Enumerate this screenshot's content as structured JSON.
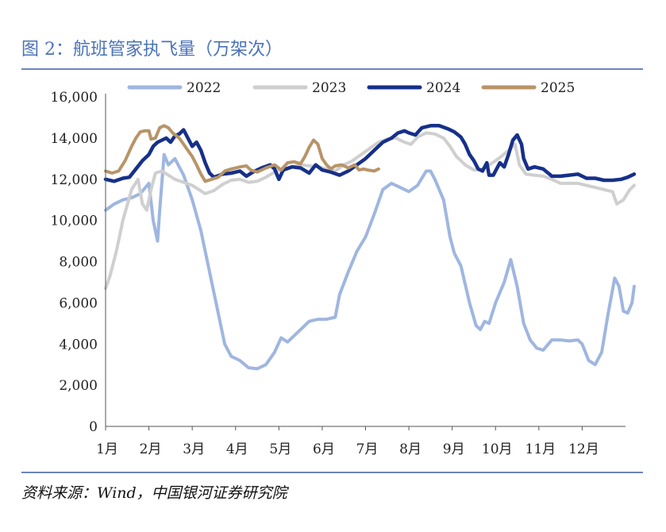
{
  "figure": {
    "title": "图 2：航班管家执飞量（万架次）",
    "source": "资料来源：Wind，中国银河证券研究院"
  },
  "chart_data": {
    "type": "line",
    "title": "图 2：航班管家执飞量（万架次）",
    "xlabel": "",
    "ylabel": "",
    "ylim": [
      0,
      16000
    ],
    "yticks": [
      "0",
      "2,000",
      "4,000",
      "6,000",
      "8,000",
      "10,000",
      "12,000",
      "14,000",
      "16,000"
    ],
    "xticks": [
      "1月",
      "2月",
      "3月",
      "4月",
      "5月",
      "6月",
      "7月",
      "8月",
      "9月",
      "10月",
      "11月",
      "12月"
    ],
    "xlim": [
      0,
      12
    ],
    "grid": false,
    "legend_position": "top",
    "series": [
      {
        "name": "2022",
        "color": "#9fb6e0",
        "points": [
          [
            0.0,
            10500
          ],
          [
            0.2,
            10800
          ],
          [
            0.4,
            11000
          ],
          [
            0.6,
            11100
          ],
          [
            0.8,
            11300
          ],
          [
            1.0,
            11800
          ],
          [
            1.1,
            10000
          ],
          [
            1.2,
            9000
          ],
          [
            1.25,
            10500
          ],
          [
            1.35,
            13200
          ],
          [
            1.45,
            12700
          ],
          [
            1.6,
            13000
          ],
          [
            1.8,
            12200
          ],
          [
            2.0,
            11000
          ],
          [
            2.2,
            9500
          ],
          [
            2.4,
            7500
          ],
          [
            2.6,
            5500
          ],
          [
            2.75,
            4000
          ],
          [
            2.9,
            3400
          ],
          [
            3.1,
            3200
          ],
          [
            3.3,
            2850
          ],
          [
            3.5,
            2800
          ],
          [
            3.7,
            3000
          ],
          [
            3.9,
            3600
          ],
          [
            4.05,
            4300
          ],
          [
            4.2,
            4100
          ],
          [
            4.35,
            4400
          ],
          [
            4.5,
            4700
          ],
          [
            4.7,
            5100
          ],
          [
            4.9,
            5200
          ],
          [
            5.1,
            5200
          ],
          [
            5.3,
            5300
          ],
          [
            5.4,
            6400
          ],
          [
            5.6,
            7500
          ],
          [
            5.8,
            8500
          ],
          [
            6.0,
            9200
          ],
          [
            6.2,
            10300
          ],
          [
            6.4,
            11500
          ],
          [
            6.6,
            11800
          ],
          [
            6.8,
            11600
          ],
          [
            7.0,
            11400
          ],
          [
            7.2,
            11700
          ],
          [
            7.4,
            12400
          ],
          [
            7.5,
            12400
          ],
          [
            7.6,
            12000
          ],
          [
            7.8,
            11000
          ],
          [
            7.95,
            9200
          ],
          [
            8.05,
            8400
          ],
          [
            8.2,
            7800
          ],
          [
            8.4,
            6000
          ],
          [
            8.55,
            4900
          ],
          [
            8.65,
            4700
          ],
          [
            8.75,
            5100
          ],
          [
            8.85,
            5000
          ],
          [
            9.0,
            6000
          ],
          [
            9.2,
            7000
          ],
          [
            9.35,
            8100
          ],
          [
            9.5,
            6800
          ],
          [
            9.65,
            5000
          ],
          [
            9.8,
            4200
          ],
          [
            9.95,
            3800
          ],
          [
            10.1,
            3700
          ],
          [
            10.3,
            4200
          ],
          [
            10.5,
            4200
          ],
          [
            10.7,
            4150
          ],
          [
            10.9,
            4200
          ],
          [
            11.0,
            4000
          ],
          [
            11.15,
            3200
          ],
          [
            11.3,
            3000
          ],
          [
            11.45,
            3600
          ],
          [
            11.6,
            5500
          ],
          [
            11.75,
            7200
          ],
          [
            11.85,
            6800
          ],
          [
            11.95,
            5600
          ],
          [
            12.05,
            5500
          ],
          [
            12.15,
            6000
          ],
          [
            12.2,
            6800
          ]
        ]
      },
      {
        "name": "2023",
        "color": "#cfcfcf",
        "points": [
          [
            0.0,
            6700
          ],
          [
            0.1,
            7300
          ],
          [
            0.25,
            8500
          ],
          [
            0.4,
            10000
          ],
          [
            0.6,
            11500
          ],
          [
            0.75,
            12000
          ],
          [
            0.85,
            10800
          ],
          [
            0.95,
            10500
          ],
          [
            1.05,
            11500
          ],
          [
            1.15,
            12300
          ],
          [
            1.3,
            12400
          ],
          [
            1.45,
            12200
          ],
          [
            1.6,
            12000
          ],
          [
            1.8,
            11850
          ],
          [
            2.0,
            11700
          ],
          [
            2.15,
            11500
          ],
          [
            2.3,
            11300
          ],
          [
            2.5,
            11450
          ],
          [
            2.7,
            11750
          ],
          [
            2.9,
            11950
          ],
          [
            3.1,
            12000
          ],
          [
            3.3,
            11850
          ],
          [
            3.5,
            11900
          ],
          [
            3.7,
            12100
          ],
          [
            3.9,
            12350
          ],
          [
            4.1,
            12500
          ],
          [
            4.3,
            12600
          ],
          [
            4.5,
            12700
          ],
          [
            4.7,
            12650
          ],
          [
            4.9,
            12600
          ],
          [
            5.1,
            12500
          ],
          [
            5.3,
            12400
          ],
          [
            5.5,
            12700
          ],
          [
            5.7,
            12900
          ],
          [
            5.9,
            13200
          ],
          [
            6.1,
            13500
          ],
          [
            6.3,
            13800
          ],
          [
            6.5,
            13950
          ],
          [
            6.7,
            14000
          ],
          [
            6.9,
            13800
          ],
          [
            7.05,
            13700
          ],
          [
            7.2,
            14050
          ],
          [
            7.4,
            14250
          ],
          [
            7.6,
            14200
          ],
          [
            7.8,
            14000
          ],
          [
            7.95,
            13600
          ],
          [
            8.1,
            13100
          ],
          [
            8.3,
            12700
          ],
          [
            8.5,
            12450
          ],
          [
            8.7,
            12500
          ],
          [
            8.9,
            12750
          ],
          [
            9.1,
            13050
          ],
          [
            9.3,
            13400
          ],
          [
            9.45,
            13700
          ],
          [
            9.55,
            12700
          ],
          [
            9.7,
            12250
          ],
          [
            9.9,
            12200
          ],
          [
            10.1,
            12150
          ],
          [
            10.3,
            12000
          ],
          [
            10.5,
            11800
          ],
          [
            10.7,
            11800
          ],
          [
            10.9,
            11800
          ],
          [
            11.1,
            11700
          ],
          [
            11.3,
            11600
          ],
          [
            11.5,
            11500
          ],
          [
            11.7,
            11400
          ],
          [
            11.8,
            10800
          ],
          [
            11.95,
            11000
          ],
          [
            12.1,
            11500
          ],
          [
            12.2,
            11700
          ]
        ]
      },
      {
        "name": "2024",
        "color": "#16308a",
        "points": [
          [
            0.0,
            12000
          ],
          [
            0.2,
            11900
          ],
          [
            0.4,
            12050
          ],
          [
            0.55,
            12100
          ],
          [
            0.7,
            12500
          ],
          [
            0.85,
            12900
          ],
          [
            1.0,
            13200
          ],
          [
            1.1,
            13600
          ],
          [
            1.2,
            13800
          ],
          [
            1.3,
            13900
          ],
          [
            1.4,
            14000
          ],
          [
            1.5,
            13800
          ],
          [
            1.6,
            14100
          ],
          [
            1.7,
            14200
          ],
          [
            1.8,
            14400
          ],
          [
            1.9,
            14000
          ],
          [
            2.0,
            13600
          ],
          [
            2.1,
            13800
          ],
          [
            2.2,
            13400
          ],
          [
            2.3,
            12800
          ],
          [
            2.4,
            12300
          ],
          [
            2.5,
            12100
          ],
          [
            2.7,
            12250
          ],
          [
            2.9,
            12300
          ],
          [
            3.1,
            12400
          ],
          [
            3.25,
            12150
          ],
          [
            3.4,
            12350
          ],
          [
            3.6,
            12550
          ],
          [
            3.8,
            12700
          ],
          [
            3.9,
            12500
          ],
          [
            4.0,
            12000
          ],
          [
            4.1,
            12450
          ],
          [
            4.3,
            12600
          ],
          [
            4.5,
            12550
          ],
          [
            4.7,
            12300
          ],
          [
            4.85,
            12700
          ],
          [
            5.0,
            12450
          ],
          [
            5.2,
            12350
          ],
          [
            5.4,
            12200
          ],
          [
            5.6,
            12400
          ],
          [
            5.8,
            12700
          ],
          [
            6.0,
            13000
          ],
          [
            6.2,
            13400
          ],
          [
            6.4,
            13800
          ],
          [
            6.6,
            14000
          ],
          [
            6.75,
            14250
          ],
          [
            6.9,
            14350
          ],
          [
            7.0,
            14250
          ],
          [
            7.15,
            14150
          ],
          [
            7.3,
            14500
          ],
          [
            7.5,
            14600
          ],
          [
            7.7,
            14600
          ],
          [
            7.9,
            14450
          ],
          [
            8.05,
            14300
          ],
          [
            8.2,
            14050
          ],
          [
            8.3,
            13700
          ],
          [
            8.4,
            13200
          ],
          [
            8.5,
            12900
          ],
          [
            8.6,
            12500
          ],
          [
            8.7,
            12400
          ],
          [
            8.8,
            12800
          ],
          [
            8.85,
            12200
          ],
          [
            8.95,
            12200
          ],
          [
            9.1,
            12800
          ],
          [
            9.2,
            12600
          ],
          [
            9.3,
            13200
          ],
          [
            9.4,
            13900
          ],
          [
            9.5,
            14150
          ],
          [
            9.6,
            13700
          ],
          [
            9.65,
            13000
          ],
          [
            9.75,
            12500
          ],
          [
            9.9,
            12600
          ],
          [
            10.1,
            12500
          ],
          [
            10.3,
            12150
          ],
          [
            10.5,
            12150
          ],
          [
            10.7,
            12200
          ],
          [
            10.9,
            12250
          ],
          [
            11.1,
            12050
          ],
          [
            11.3,
            12050
          ],
          [
            11.5,
            11950
          ],
          [
            11.7,
            11950
          ],
          [
            11.9,
            12000
          ],
          [
            12.05,
            12100
          ],
          [
            12.2,
            12250
          ]
        ]
      },
      {
        "name": "2025",
        "color": "#b89468",
        "points": [
          [
            0.0,
            12400
          ],
          [
            0.15,
            12300
          ],
          [
            0.3,
            12400
          ],
          [
            0.45,
            12900
          ],
          [
            0.6,
            13600
          ],
          [
            0.7,
            14000
          ],
          [
            0.8,
            14300
          ],
          [
            0.9,
            14350
          ],
          [
            1.0,
            14350
          ],
          [
            1.05,
            13950
          ],
          [
            1.15,
            14000
          ],
          [
            1.25,
            14500
          ],
          [
            1.35,
            14600
          ],
          [
            1.45,
            14500
          ],
          [
            1.55,
            14250
          ],
          [
            1.7,
            14000
          ],
          [
            1.85,
            13550
          ],
          [
            2.0,
            13100
          ],
          [
            2.1,
            12700
          ],
          [
            2.2,
            12250
          ],
          [
            2.3,
            11900
          ],
          [
            2.45,
            12000
          ],
          [
            2.6,
            12100
          ],
          [
            2.75,
            12400
          ],
          [
            2.9,
            12500
          ],
          [
            3.1,
            12600
          ],
          [
            3.25,
            12650
          ],
          [
            3.35,
            12450
          ],
          [
            3.5,
            12350
          ],
          [
            3.7,
            12550
          ],
          [
            3.9,
            12700
          ],
          [
            4.05,
            12450
          ],
          [
            4.2,
            12800
          ],
          [
            4.35,
            12850
          ],
          [
            4.5,
            12750
          ],
          [
            4.6,
            13100
          ],
          [
            4.7,
            13550
          ],
          [
            4.8,
            13900
          ],
          [
            4.9,
            13700
          ],
          [
            5.0,
            13000
          ],
          [
            5.1,
            12700
          ],
          [
            5.2,
            12500
          ],
          [
            5.3,
            12650
          ],
          [
            5.45,
            12700
          ],
          [
            5.6,
            12550
          ],
          [
            5.75,
            12700
          ],
          [
            5.85,
            12450
          ],
          [
            5.95,
            12500
          ],
          [
            6.05,
            12450
          ],
          [
            6.2,
            12400
          ],
          [
            6.3,
            12500
          ]
        ]
      }
    ]
  }
}
